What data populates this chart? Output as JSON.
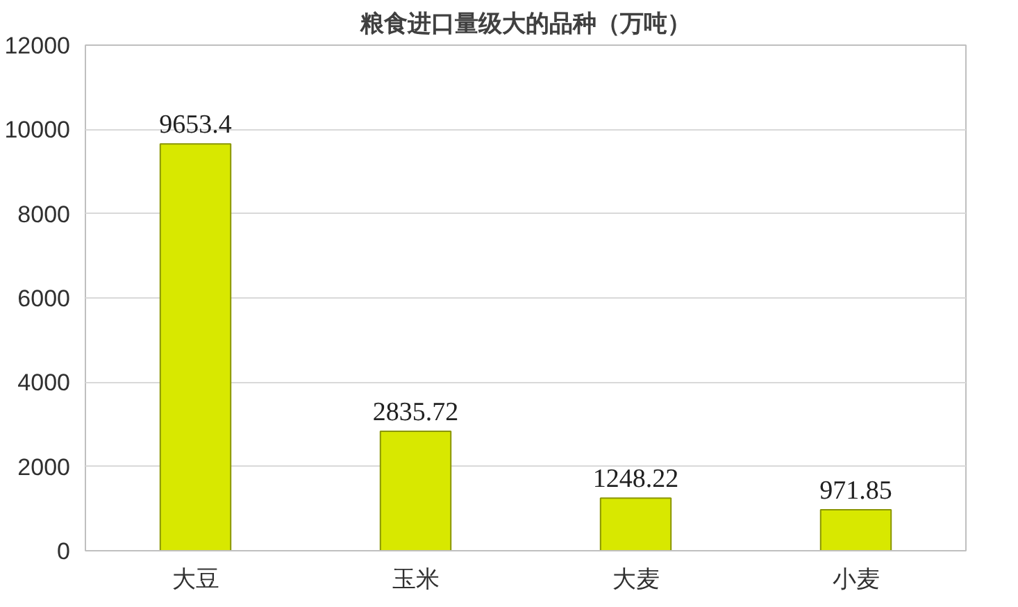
{
  "chart_data": {
    "type": "bar",
    "title": "粮食进口量级大的品种（万吨）",
    "categories": [
      "大豆",
      "玉米",
      "大麦",
      "小麦"
    ],
    "values": [
      9653.4,
      2835.72,
      1248.22,
      971.85
    ],
    "color": "#d8e800",
    "ylim": [
      0,
      12000
    ],
    "yticks": [
      0,
      2000,
      4000,
      6000,
      8000,
      10000,
      12000
    ],
    "grid": "y",
    "data_labels": true
  }
}
